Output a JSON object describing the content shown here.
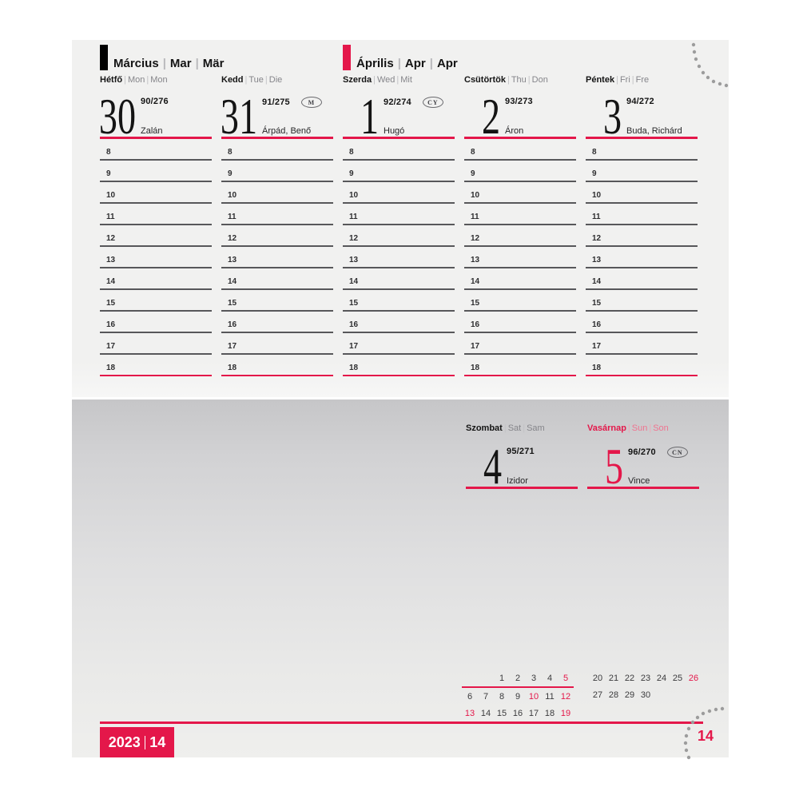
{
  "separator": "|",
  "colors": {
    "accent": "#e4174a",
    "march_bar": "#000000",
    "april_bar": "#e4174a"
  },
  "months": [
    {
      "primary": "Március",
      "english": "Mar",
      "german": "Mär"
    },
    {
      "primary": "Április",
      "english": "Apr",
      "german": "Apr"
    }
  ],
  "week": [
    {
      "day": "Hétfő",
      "en": "Mon",
      "de": "Mon",
      "date": "30",
      "doy": "90/276",
      "name": "Zalán"
    },
    {
      "day": "Kedd",
      "en": "Tue",
      "de": "Die",
      "date": "31",
      "doy": "91/275",
      "name": "Árpád, Benő",
      "badge": "M"
    },
    {
      "day": "Szerda",
      "en": "Wed",
      "de": "Mit",
      "date": "1",
      "doy": "92/274",
      "name": "Hugó",
      "badge": "CY"
    },
    {
      "day": "Csütörtök",
      "en": "Thu",
      "de": "Don",
      "date": "2",
      "doy": "93/273",
      "name": "Áron"
    },
    {
      "day": "Péntek",
      "en": "Fri",
      "de": "Fre",
      "date": "3",
      "doy": "94/272",
      "name": "Buda, Richárd"
    }
  ],
  "hours": [
    "8",
    "9",
    "10",
    "11",
    "12",
    "13",
    "14",
    "15",
    "16",
    "17",
    "18"
  ],
  "weekend": [
    {
      "day": "Szombat",
      "en": "Sat",
      "de": "Sam",
      "date": "4",
      "doy": "95/271",
      "name": "Izidor"
    },
    {
      "day": "Vasárnap",
      "en": "Sun",
      "de": "Son",
      "date": "5",
      "doy": "96/270",
      "name": "Vince",
      "badge": "CN"
    }
  ],
  "mini_calendar": {
    "left_rows": [
      [
        "",
        "",
        "1",
        "2",
        "3",
        "4",
        "5"
      ],
      [
        "6",
        "7",
        "8",
        "9",
        "10",
        "11",
        "12"
      ],
      [
        "13",
        "14",
        "15",
        "16",
        "17",
        "18",
        "19"
      ]
    ],
    "right_rows": [
      [
        "20",
        "21",
        "22",
        "23",
        "24",
        "25",
        "26"
      ],
      [
        "27",
        "28",
        "29",
        "30",
        "",
        "",
        ""
      ]
    ],
    "red_days": [
      "5",
      "10",
      "12",
      "13",
      "19",
      "26"
    ]
  },
  "footer": {
    "year": "2023",
    "week_number": "14",
    "page_number": "14"
  }
}
